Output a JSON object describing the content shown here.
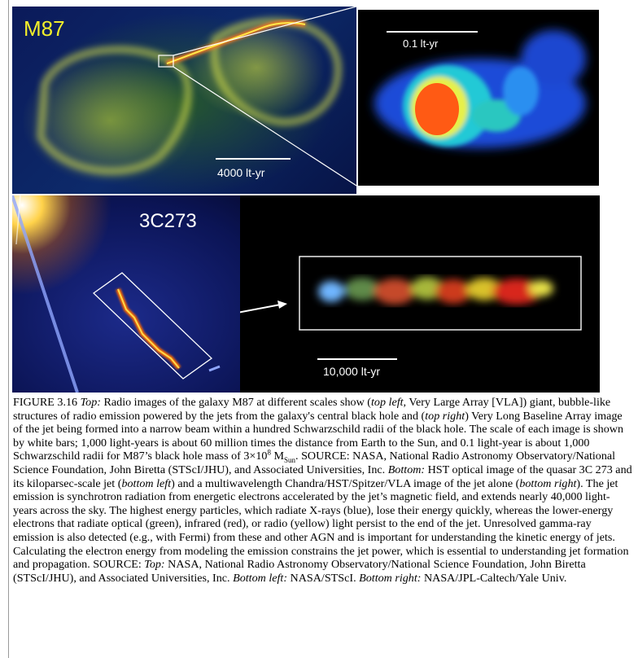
{
  "panels": {
    "m87": {
      "label": "M87",
      "scale": "4000 lt-yr"
    },
    "vlba": {
      "scale": "0.1 lt-yr"
    },
    "quasar": {
      "label": "3C273"
    },
    "chandra": {
      "scale": "10,000 lt-yr"
    }
  },
  "caption": {
    "fig": "FIGURE 3.16",
    "top": "Top:",
    "s1": " Radio images of the galaxy M87 at different scales show (",
    "top_left": "top left,",
    "s2": " Very Large Array [VLA]) giant, bubble-like structures of radio emission powered by the jets from the galaxy's central black hole and (",
    "top_right": "top right",
    "s3": ") Very Long Baseline Array image of the jet being formed into a narrow beam within a hundred Schwarzschild radii of the black hole. The scale of each image is shown by white bars; 1,000 light-years is about 60 million times the distance from Earth to the Sun, and 0.1 light-year is about 1,000 Schwarzschild radii for M87’s black hole mass of 3×10",
    "exp": "8",
    "m": " M",
    "msub": "Sun",
    "s4": ". SOURCE: NASA, National Radio Astronomy Observatory/National Science Foundation, John Biretta (STScI/JHU), and Associated Universities, Inc. ",
    "bottom": "Bottom:",
    "s5": " HST optical image of the quasar 3C 273 and its kiloparsec-scale jet (",
    "bottom_left": "bottom left",
    "s6": ") and a multiwavelength Chandra/HST/Spitzer/VLA image of the jet alone (",
    "bottom_right": "bottom right",
    "s7": "). The jet emission is synchrotron radiation from energetic electrons accelerated by the jet’s magnetic field, and extends nearly 40,000 light-years across the sky. The highest energy particles, which radiate X-rays (blue), lose their energy quickly, whereas the lower-energy electrons that radiate optical (green), infrared (red), or radio (yellow) light persist to the end of the jet. Unresolved gamma-ray emission is also detected (e.g., with Fermi) from these and other AGN and is important for understanding the kinetic energy of jets. Calculating the electron energy from modeling the emission constrains the jet power, which is essential to understanding jet formation and propagation. SOURCE: ",
    "top2": "Top:",
    "s8": " NASA, National Radio Astronomy Observatory/National Science Foundation, John Biretta (STScI/JHU), and Associated Universities, Inc. ",
    "bottom_left2": "Bottom left:",
    "s9": " NASA/STScI. ",
    "bottom_right2": "Bottom right:",
    "s10": " NASA/JPL-Caltech/Yale Univ."
  },
  "colors": {
    "label_yellow": "#f2ee2a",
    "caption_text": "#000000"
  }
}
